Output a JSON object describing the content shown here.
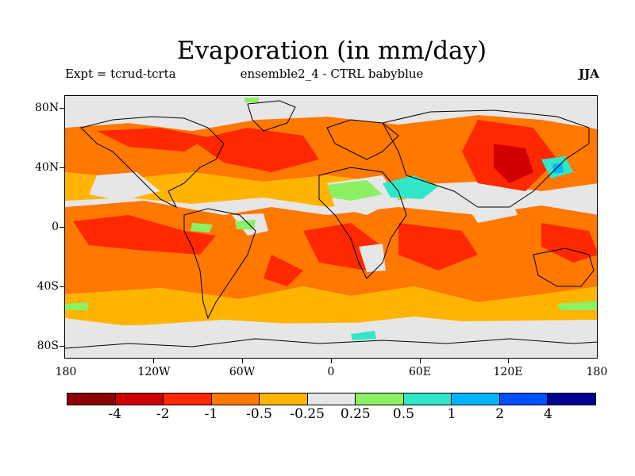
{
  "header": {
    "title": "Evaporation (in mm/day)",
    "left": "Expt = tcrud-tcrta",
    "center": "ensemble2_4 - CTRL babyblue",
    "right": "JJA"
  },
  "map": {
    "lat_labels": [
      "80N",
      "40N",
      "0",
      "40S",
      "80S"
    ],
    "lon_labels": [
      "180",
      "120W",
      "60W",
      "0",
      "60E",
      "120E",
      "180"
    ],
    "colors": {
      "ocean_bg": "#e6e6e6",
      "coast": "#000000"
    }
  },
  "colorbar": {
    "levels": [
      "-4",
      "-2",
      "-1",
      "-0.5",
      "-0.25",
      "0.25",
      "0.5",
      "1",
      "2",
      "4"
    ],
    "colors": [
      "#8b0000",
      "#d00000",
      "#ff2800",
      "#ff7800",
      "#ffb400",
      "#e6e6e6",
      "#8cf064",
      "#32e6c8",
      "#00b4ff",
      "#0050ff",
      "#000090"
    ]
  }
}
